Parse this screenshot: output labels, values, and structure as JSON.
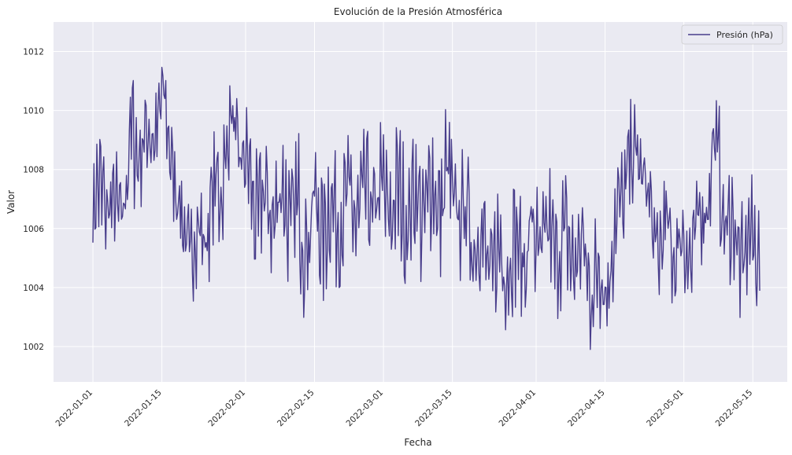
{
  "chart_data": {
    "type": "line",
    "title": "Evolución de la Presión Atmosférica",
    "xlabel": "Fecha",
    "ylabel": "Valor",
    "xlim": [
      "2021-12-24",
      "2022-05-22"
    ],
    "ylim": [
      1000.8,
      1013.0
    ],
    "x_ticks": [
      "2022-01-01",
      "2022-01-15",
      "2022-02-01",
      "2022-02-15",
      "2022-03-01",
      "2022-03-15",
      "2022-04-01",
      "2022-04-15",
      "2022-05-01",
      "2022-05-15"
    ],
    "y_ticks": [
      1002,
      1004,
      1006,
      1008,
      1010,
      1012
    ],
    "grid": true,
    "legend_position": "top-right",
    "colors": {
      "background": "#eaeaf2",
      "grid": "#ffffff",
      "series": "#483d8b"
    },
    "series": [
      {
        "name": "Presión (hPa)",
        "x": [
          "2022-01-01",
          "2022-01-03",
          "2022-01-05",
          "2022-01-07",
          "2022-01-09",
          "2022-01-11",
          "2022-01-13",
          "2022-01-15",
          "2022-01-17",
          "2022-01-19",
          "2022-01-21",
          "2022-01-24",
          "2022-01-27",
          "2022-01-29",
          "2022-01-31",
          "2022-02-03",
          "2022-02-06",
          "2022-02-09",
          "2022-02-12",
          "2022-02-15",
          "2022-02-18",
          "2022-02-21",
          "2022-02-24",
          "2022-02-27",
          "2022-03-02",
          "2022-03-05",
          "2022-03-08",
          "2022-03-11",
          "2022-03-14",
          "2022-03-17",
          "2022-03-20",
          "2022-03-23",
          "2022-03-26",
          "2022-03-29",
          "2022-04-01",
          "2022-04-04",
          "2022-04-07",
          "2022-04-10",
          "2022-04-13",
          "2022-04-16",
          "2022-04-19",
          "2022-04-22",
          "2022-04-25",
          "2022-04-28",
          "2022-05-01",
          "2022-05-04",
          "2022-05-07",
          "2022-05-10",
          "2022-05-13",
          "2022-05-16"
        ],
        "low": [
          1004.8,
          1004.4,
          1004.8,
          1004.5,
          1006.2,
          1006.8,
          1007.2,
          1008.2,
          1006.8,
          1004.0,
          1003.2,
          1004.0,
          1005.0,
          1007.5,
          1006.8,
          1004.2,
          1004.5,
          1004.5,
          1002.8,
          1003.5,
          1003.6,
          1004.2,
          1004.3,
          1004.5,
          1004.2,
          1004.0,
          1004.1,
          1004.3,
          1004.2,
          1003.8,
          1003.4,
          1002.1,
          1002.6,
          1002.5,
          1002.6,
          1002.9,
          1003.0,
          1002.7,
          1001.5,
          1002.0,
          1005.0,
          1007.0,
          1003.2,
          1003.5,
          1002.4,
          1003.4,
          1006.0,
          1003.6,
          1002.8,
          1003.4
        ],
        "high": [
          1008.0,
          1010.6,
          1008.2,
          1009.2,
          1011.6,
          1011.0,
          1010.8,
          1012.4,
          1010.3,
          1008.0,
          1007.6,
          1008.0,
          1010.4,
          1011.4,
          1010.5,
          1009.5,
          1008.8,
          1009.5,
          1009.2,
          1009.2,
          1009.0,
          1009.1,
          1009.3,
          1009.5,
          1009.7,
          1009.4,
          1009.5,
          1009.8,
          1010.5,
          1009.0,
          1008.0,
          1007.4,
          1007.4,
          1008.0,
          1008.5,
          1008.0,
          1007.8,
          1007.5,
          1006.6,
          1007.4,
          1010.5,
          1010.2,
          1008.0,
          1007.8,
          1008.1,
          1008.0,
          1011.4,
          1008.5,
          1007.4,
          1008.1
        ]
      }
    ]
  }
}
